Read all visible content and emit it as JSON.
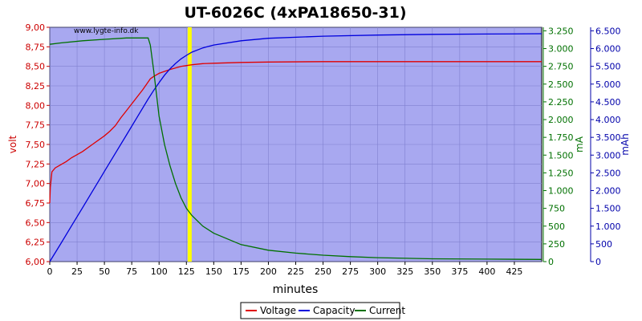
{
  "chart_data": {
    "type": "line",
    "title": "UT-6026C (4xPA18650-31)",
    "watermark": "www.lygte-info.dk",
    "xlabel": "minutes",
    "x_ticks": [
      "0",
      "25",
      "50",
      "75",
      "100",
      "125",
      "150",
      "175",
      "200",
      "225",
      "250",
      "275",
      "300",
      "325",
      "350",
      "375",
      "400",
      "425"
    ],
    "xlim": [
      0,
      450
    ],
    "axes": {
      "left": {
        "label": "volt",
        "color": "#cc0000",
        "range": [
          6.0,
          9.0
        ],
        "ticks": [
          "6,00",
          "6,25",
          "6,50",
          "6,75",
          "7,00",
          "7,25",
          "7,50",
          "7,75",
          "8,00",
          "8,25",
          "8,50",
          "8,75",
          "9,00"
        ]
      },
      "right1": {
        "label": "mA",
        "color": "#007000",
        "range": [
          0,
          3300
        ],
        "ticks": [
          "0",
          "250",
          "500",
          "750",
          "1.000",
          "1.250",
          "1.500",
          "1.750",
          "2.000",
          "2.250",
          "2.500",
          "2.750",
          "3.000",
          "3.250"
        ]
      },
      "right2": {
        "label": "mAh",
        "color": "#0000aa",
        "range": [
          0,
          6600
        ],
        "ticks": [
          "0",
          "500",
          "1.000",
          "1.500",
          "2.000",
          "2.500",
          "3.000",
          "3.500",
          "4.000",
          "4.500",
          "5.000",
          "5.500",
          "6.000",
          "6.500"
        ]
      }
    },
    "marker": {
      "x": 128,
      "color": "#ffff00"
    },
    "legend": {
      "placement": "bottom-center"
    },
    "series": [
      {
        "name": "Voltage",
        "axis": "left",
        "color": "#e00000",
        "x": [
          0,
          0.5,
          2,
          5,
          10,
          15,
          20,
          25,
          30,
          40,
          50,
          55,
          60,
          65,
          70,
          75,
          80,
          85,
          88,
          90,
          92,
          95,
          100,
          110,
          120,
          130,
          140,
          150,
          175,
          200,
          250,
          300,
          350,
          400,
          450
        ],
        "y": [
          6.75,
          6.95,
          7.15,
          7.2,
          7.24,
          7.28,
          7.33,
          7.37,
          7.41,
          7.51,
          7.61,
          7.67,
          7.74,
          7.84,
          7.93,
          8.02,
          8.11,
          8.2,
          8.26,
          8.3,
          8.34,
          8.37,
          8.41,
          8.46,
          8.5,
          8.52,
          8.535,
          8.54,
          8.55,
          8.555,
          8.56,
          8.56,
          8.56,
          8.56,
          8.56
        ]
      },
      {
        "name": "Capacity",
        "axis": "right2",
        "color": "#0000dd",
        "x": [
          0,
          10,
          20,
          30,
          40,
          50,
          60,
          70,
          80,
          90,
          95,
          100,
          105,
          110,
          115,
          120,
          125,
          130,
          140,
          150,
          175,
          200,
          250,
          300,
          350,
          400,
          450
        ],
        "y": [
          0,
          500,
          1010,
          1520,
          2030,
          2540,
          3050,
          3560,
          4070,
          4580,
          4820,
          5040,
          5250,
          5430,
          5580,
          5710,
          5810,
          5900,
          6020,
          6100,
          6220,
          6290,
          6350,
          6380,
          6400,
          6410,
          6420
        ]
      },
      {
        "name": "Current",
        "axis": "right1",
        "color": "#007000",
        "x": [
          0,
          10,
          30,
          50,
          70,
          80,
          90,
          92,
          95,
          100,
          105,
          110,
          115,
          120,
          125,
          130,
          140,
          150,
          175,
          200,
          225,
          250,
          275,
          300,
          350,
          400,
          450
        ],
        "y": [
          3060,
          3080,
          3110,
          3130,
          3150,
          3150,
          3150,
          3050,
          2700,
          2050,
          1650,
          1350,
          1100,
          900,
          750,
          650,
          500,
          400,
          240,
          160,
          120,
          90,
          70,
          55,
          40,
          35,
          30
        ]
      }
    ]
  }
}
